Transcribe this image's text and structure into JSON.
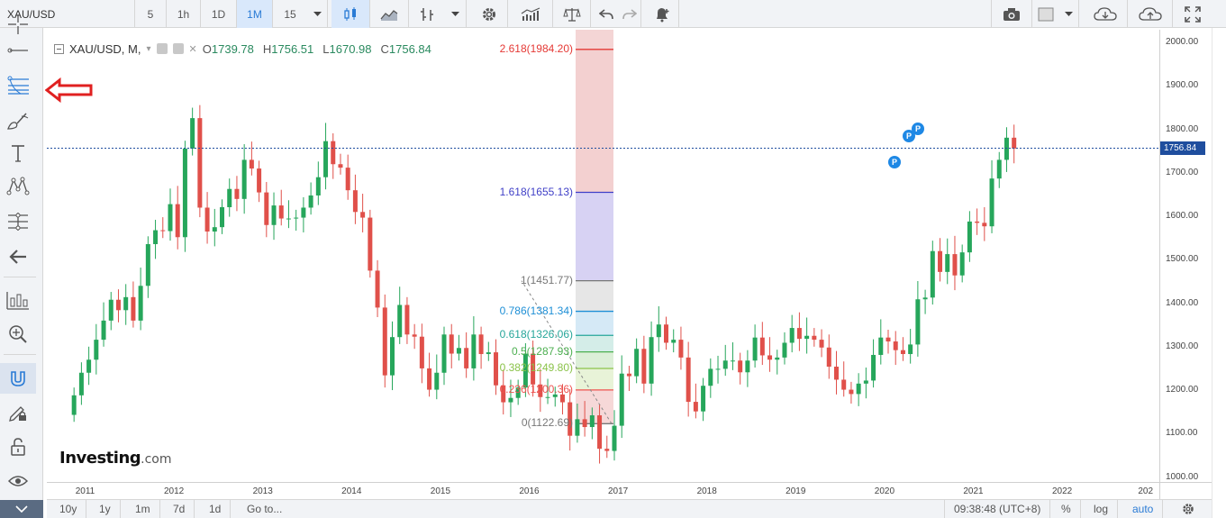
{
  "toolbar": {
    "symbol": "XAU/USD",
    "intervals": [
      "5",
      "1h",
      "1D",
      "1M",
      "15"
    ],
    "active_interval": "1M"
  },
  "legend": {
    "symbol": "XAU/USD",
    "period": "M",
    "open_label": "O",
    "open": "1739.78",
    "high_label": "H",
    "high": "1756.51",
    "low_label": "L",
    "low": "1670.98",
    "close_label": "C",
    "close": "1756.84"
  },
  "fib_levels": [
    {
      "text": "2.618(1984.20)",
      "color": "#e53935"
    },
    {
      "text": "1.618(1655.13)",
      "color": "#3f3fc7"
    },
    {
      "text": "1(1451.77)",
      "color": "#777777"
    },
    {
      "text": "0.786(1381.34)",
      "color": "#1e8fd6"
    },
    {
      "text": "0.618(1326.06)",
      "color": "#26a69a"
    },
    {
      "text": "0.5(1287.93)",
      "color": "#4caf50"
    },
    {
      "text": "0.382(1249.80)",
      "color": "#8bc34a"
    },
    {
      "text": "0.236(1200.36)",
      "color": "#ef5350"
    },
    {
      "text": "0(1122.69)",
      "color": "#777777"
    }
  ],
  "price_axis": [
    "2000.00",
    "1900.00",
    "1800.00",
    "1700.00",
    "1600.00",
    "1500.00",
    "1400.00",
    "1300.00",
    "1200.00",
    "1100.00",
    "1000.00"
  ],
  "current_price": "1756.84",
  "year_axis": [
    "2011",
    "2012",
    "2013",
    "2014",
    "2015",
    "2016",
    "2017",
    "2018",
    "2019",
    "2020",
    "2021",
    "2022",
    "202"
  ],
  "markers": [
    "P",
    "P",
    "P"
  ],
  "bottom": {
    "ranges": [
      "10y",
      "1y",
      "1m",
      "7d",
      "1d"
    ],
    "goto": "Go to...",
    "time": "09:38:48 (UTC+8)",
    "percent": "%",
    "log": "log",
    "auto": "auto"
  },
  "logo": {
    "main": "Investing",
    "suffix": ".com"
  },
  "colors": {
    "up": "#26a65b",
    "down": "#e0504a",
    "accent": "#2a7bd5",
    "arrow": "#e02020"
  },
  "chart_data": {
    "type": "candlestick",
    "title": "XAU/USD, M",
    "ylim": [
      1000,
      2000
    ],
    "x_ticks": [
      "2011",
      "2012",
      "2013",
      "2014",
      "2015",
      "2016",
      "2017",
      "2018",
      "2019",
      "2020",
      "2021",
      "2022"
    ],
    "current_price": 1756.84,
    "monthly_close": [
      1188,
      1240,
      1270,
      1316,
      1360,
      1408,
      1384,
      1414,
      1360,
      1440,
      1536,
      1568,
      1566,
      1628,
      1552,
      1756,
      1826,
      1620,
      1565,
      1575,
      1621,
      1663,
      1640,
      1730,
      1710,
      1655,
      1580,
      1625,
      1595,
      1595,
      1597,
      1620,
      1648,
      1690,
      1773,
      1720,
      1712,
      1660,
      1610,
      1597,
      1475,
      1390,
      1234,
      1322,
      1396,
      1328,
      1323,
      1250,
      1201,
      1240,
      1328,
      1284,
      1297,
      1250,
      1328,
      1283,
      1287,
      1211,
      1172,
      1182,
      1206,
      1284,
      1213,
      1184,
      1184,
      1190,
      1172,
      1095,
      1133,
      1115,
      1142,
      1065,
      1060,
      1118,
      1238,
      1232,
      1295,
      1215,
      1322,
      1351,
      1309,
      1316,
      1275,
      1173,
      1151,
      1210,
      1249,
      1249,
      1268,
      1268,
      1241,
      1268,
      1321,
      1280,
      1270,
      1275,
      1309,
      1343,
      1318,
      1325,
      1316,
      1298,
      1254,
      1224,
      1201,
      1191,
      1215,
      1222,
      1281,
      1321,
      1312,
      1292,
      1283,
      1305,
      1409,
      1413,
      1520,
      1472,
      1513,
      1464,
      1517,
      1588,
      1585,
      1577,
      1687,
      1730,
      1781,
      1756
    ],
    "fib_retracement": [
      {
        "level": 2.618,
        "price": 1984.2
      },
      {
        "level": 1.618,
        "price": 1655.13
      },
      {
        "level": 1,
        "price": 1451.77
      },
      {
        "level": 0.786,
        "price": 1381.34
      },
      {
        "level": 0.618,
        "price": 1326.06
      },
      {
        "level": 0.5,
        "price": 1287.93
      },
      {
        "level": 0.382,
        "price": 1249.8
      },
      {
        "level": 0.236,
        "price": 1200.36
      },
      {
        "level": 0,
        "price": 1122.69
      }
    ]
  }
}
